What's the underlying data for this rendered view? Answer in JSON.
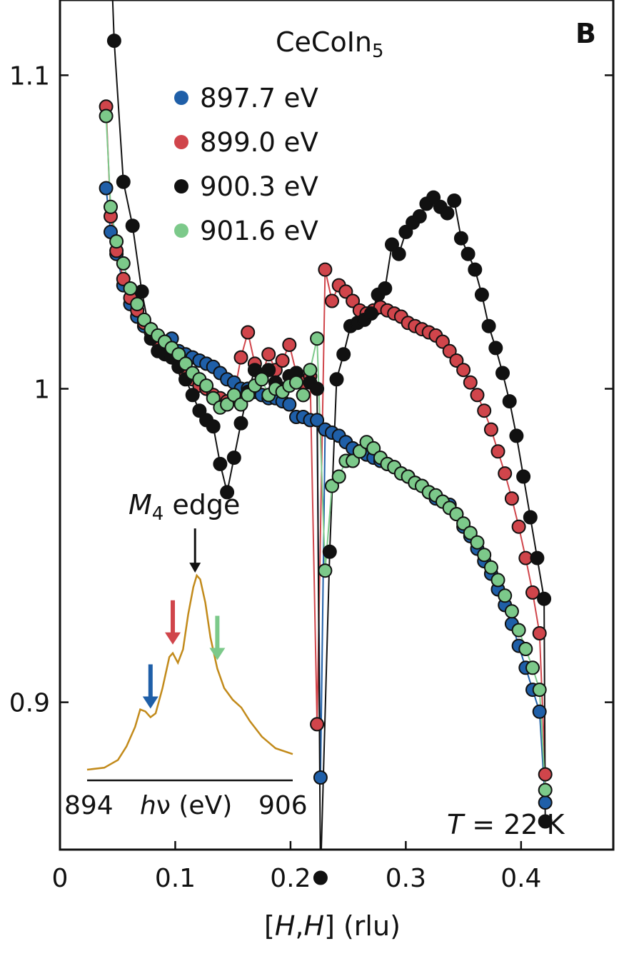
{
  "chart_data": {
    "type": "line",
    "panel_label": "B",
    "compound": {
      "base": "CeCoIn",
      "sub": "5"
    },
    "temperature": {
      "symbol": "T",
      "rest": " = 22 K"
    },
    "xlabel": {
      "open": "[",
      "h1": "H",
      "comma": ",",
      "h2": "H",
      "close": "] (rlu)"
    },
    "xlim": [
      0,
      0.48
    ],
    "ylim": [
      0.853,
      1.124
    ],
    "xticks": [
      "0",
      "0.1",
      "0.2",
      "0.3",
      "0.4"
    ],
    "xtick_values": [
      0,
      0.1,
      0.2,
      0.3,
      0.4
    ],
    "yticks": [
      "0.9",
      "1",
      "1.1"
    ],
    "ytick_values": [
      0.9,
      1.0,
      1.1
    ],
    "series": [
      {
        "name": "897.7 eV",
        "color": "#1f5fa8",
        "points": [
          [
            0.04,
            1.064
          ],
          [
            0.044,
            1.05
          ],
          [
            0.049,
            1.043
          ],
          [
            0.055,
            1.033
          ],
          [
            0.061,
            1.027
          ],
          [
            0.067,
            1.023
          ],
          [
            0.073,
            1.02
          ],
          [
            0.079,
            1.018
          ],
          [
            0.085,
            1.016
          ],
          [
            0.091,
            1.015
          ],
          [
            0.097,
            1.016
          ],
          [
            0.103,
            1.012
          ],
          [
            0.109,
            1.011
          ],
          [
            0.115,
            1.01
          ],
          [
            0.121,
            1.009
          ],
          [
            0.127,
            1.008
          ],
          [
            0.133,
            1.007
          ],
          [
            0.139,
            1.005
          ],
          [
            0.145,
            1.003
          ],
          [
            0.151,
            1.002
          ],
          [
            0.157,
            1.0
          ],
          [
            0.163,
            1.0
          ],
          [
            0.169,
            0.999
          ],
          [
            0.175,
            0.998
          ],
          [
            0.181,
            0.997
          ],
          [
            0.187,
            0.997
          ],
          [
            0.193,
            0.996
          ],
          [
            0.199,
            0.995
          ],
          [
            0.205,
            0.991
          ],
          [
            0.211,
            0.991
          ],
          [
            0.217,
            0.99
          ],
          [
            0.223,
            0.99
          ],
          [
            0.226,
            0.876
          ],
          [
            0.23,
            0.987
          ],
          [
            0.236,
            0.986
          ],
          [
            0.242,
            0.985
          ],
          [
            0.248,
            0.983
          ],
          [
            0.254,
            0.981
          ],
          [
            0.26,
            0.98
          ],
          [
            0.266,
            0.979
          ],
          [
            0.272,
            0.978
          ],
          [
            0.278,
            0.977
          ],
          [
            0.284,
            0.976
          ],
          [
            0.29,
            0.975
          ],
          [
            0.296,
            0.973
          ],
          [
            0.302,
            0.972
          ],
          [
            0.308,
            0.97
          ],
          [
            0.314,
            0.969
          ],
          [
            0.32,
            0.967
          ],
          [
            0.326,
            0.965
          ],
          [
            0.332,
            0.964
          ],
          [
            0.338,
            0.963
          ],
          [
            0.344,
            0.96
          ],
          [
            0.35,
            0.956
          ],
          [
            0.356,
            0.953
          ],
          [
            0.362,
            0.949
          ],
          [
            0.368,
            0.945
          ],
          [
            0.374,
            0.941
          ],
          [
            0.38,
            0.936
          ],
          [
            0.386,
            0.931
          ],
          [
            0.392,
            0.925
          ],
          [
            0.398,
            0.918
          ],
          [
            0.404,
            0.911
          ],
          [
            0.41,
            0.904
          ],
          [
            0.416,
            0.897
          ],
          [
            0.421,
            0.868
          ]
        ]
      },
      {
        "name": "899.0 eV",
        "color": "#d0454b",
        "points": [
          [
            0.04,
            1.09
          ],
          [
            0.044,
            1.055
          ],
          [
            0.049,
            1.044
          ],
          [
            0.055,
            1.035
          ],
          [
            0.061,
            1.029
          ],
          [
            0.067,
            1.025
          ],
          [
            0.073,
            1.021
          ],
          [
            0.079,
            1.018
          ],
          [
            0.085,
            1.015
          ],
          [
            0.091,
            1.012
          ],
          [
            0.097,
            1.01
          ],
          [
            0.103,
            1.007
          ],
          [
            0.109,
            1.005
          ],
          [
            0.115,
            1.003
          ],
          [
            0.121,
            1.001
          ],
          [
            0.127,
            1.0
          ],
          [
            0.133,
            0.998
          ],
          [
            0.139,
            0.997
          ],
          [
            0.145,
            0.996
          ],
          [
            0.151,
            0.998
          ],
          [
            0.157,
            1.01
          ],
          [
            0.163,
            1.018
          ],
          [
            0.169,
            1.008
          ],
          [
            0.175,
            1.004
          ],
          [
            0.181,
            1.011
          ],
          [
            0.187,
            1.006
          ],
          [
            0.193,
            1.009
          ],
          [
            0.199,
            1.014
          ],
          [
            0.205,
            1.005
          ],
          [
            0.211,
            1.002
          ],
          [
            0.217,
            1.004
          ],
          [
            0.223,
            0.893
          ],
          [
            0.23,
            1.038
          ],
          [
            0.236,
            1.028
          ],
          [
            0.242,
            1.033
          ],
          [
            0.248,
            1.031
          ],
          [
            0.254,
            1.028
          ],
          [
            0.26,
            1.025
          ],
          [
            0.266,
            1.024
          ],
          [
            0.272,
            1.025
          ],
          [
            0.278,
            1.026
          ],
          [
            0.284,
            1.025
          ],
          [
            0.29,
            1.024
          ],
          [
            0.296,
            1.023
          ],
          [
            0.302,
            1.021
          ],
          [
            0.308,
            1.02
          ],
          [
            0.314,
            1.019
          ],
          [
            0.32,
            1.018
          ],
          [
            0.326,
            1.017
          ],
          [
            0.332,
            1.015
          ],
          [
            0.338,
            1.012
          ],
          [
            0.344,
            1.009
          ],
          [
            0.35,
            1.006
          ],
          [
            0.356,
            1.002
          ],
          [
            0.362,
            0.998
          ],
          [
            0.368,
            0.993
          ],
          [
            0.374,
            0.987
          ],
          [
            0.38,
            0.98
          ],
          [
            0.386,
            0.973
          ],
          [
            0.392,
            0.965
          ],
          [
            0.398,
            0.956
          ],
          [
            0.404,
            0.946
          ],
          [
            0.41,
            0.935
          ],
          [
            0.416,
            0.922
          ],
          [
            0.421,
            0.877
          ]
        ]
      },
      {
        "name": "900.3 eV",
        "color": "#111111",
        "points": [
          [
            0.04,
            1.18
          ],
          [
            0.047,
            1.111
          ],
          [
            0.055,
            1.066
          ],
          [
            0.063,
            1.052
          ],
          [
            0.071,
            1.031
          ],
          [
            0.079,
            1.016
          ],
          [
            0.085,
            1.012
          ],
          [
            0.091,
            1.011
          ],
          [
            0.097,
            1.01
          ],
          [
            0.103,
            1.007
          ],
          [
            0.109,
            1.003
          ],
          [
            0.115,
            0.998
          ],
          [
            0.121,
            0.993
          ],
          [
            0.127,
            0.99
          ],
          [
            0.133,
            0.988
          ],
          [
            0.139,
            0.976
          ],
          [
            0.145,
            0.967
          ],
          [
            0.151,
            0.978
          ],
          [
            0.157,
            0.989
          ],
          [
            0.163,
            0.999
          ],
          [
            0.169,
            1.006
          ],
          [
            0.175,
            1.004
          ],
          [
            0.181,
            1.006
          ],
          [
            0.187,
            1.002
          ],
          [
            0.193,
            1.0
          ],
          [
            0.199,
            1.004
          ],
          [
            0.205,
            1.005
          ],
          [
            0.211,
            0.998
          ],
          [
            0.217,
            1.002
          ],
          [
            0.223,
            1.0
          ],
          [
            0.226,
            0.844
          ],
          [
            0.234,
            0.948
          ],
          [
            0.24,
            1.003
          ],
          [
            0.246,
            1.011
          ],
          [
            0.252,
            1.02
          ],
          [
            0.258,
            1.021
          ],
          [
            0.264,
            1.022
          ],
          [
            0.27,
            1.024
          ],
          [
            0.276,
            1.03
          ],
          [
            0.282,
            1.032
          ],
          [
            0.288,
            1.046
          ],
          [
            0.294,
            1.043
          ],
          [
            0.3,
            1.05
          ],
          [
            0.306,
            1.053
          ],
          [
            0.312,
            1.055
          ],
          [
            0.318,
            1.059
          ],
          [
            0.324,
            1.061
          ],
          [
            0.33,
            1.058
          ],
          [
            0.336,
            1.056
          ],
          [
            0.342,
            1.06
          ],
          [
            0.348,
            1.048
          ],
          [
            0.354,
            1.043
          ],
          [
            0.36,
            1.038
          ],
          [
            0.366,
            1.03
          ],
          [
            0.372,
            1.02
          ],
          [
            0.378,
            1.013
          ],
          [
            0.384,
            1.005
          ],
          [
            0.39,
            0.996
          ],
          [
            0.396,
            0.985
          ],
          [
            0.402,
            0.972
          ],
          [
            0.408,
            0.959
          ],
          [
            0.414,
            0.946
          ],
          [
            0.42,
            0.933
          ],
          [
            0.421,
            0.862
          ]
        ]
      },
      {
        "name": "901.6 eV",
        "color": "#7cc98a",
        "points": [
          [
            0.04,
            1.087
          ],
          [
            0.044,
            1.058
          ],
          [
            0.049,
            1.047
          ],
          [
            0.055,
            1.04
          ],
          [
            0.061,
            1.032
          ],
          [
            0.067,
            1.027
          ],
          [
            0.073,
            1.022
          ],
          [
            0.079,
            1.019
          ],
          [
            0.085,
            1.017
          ],
          [
            0.091,
            1.015
          ],
          [
            0.097,
            1.013
          ],
          [
            0.103,
            1.011
          ],
          [
            0.109,
            1.008
          ],
          [
            0.115,
            1.005
          ],
          [
            0.121,
            1.003
          ],
          [
            0.127,
            1.001
          ],
          [
            0.133,
            0.997
          ],
          [
            0.139,
            0.994
          ],
          [
            0.145,
            0.995
          ],
          [
            0.151,
            0.998
          ],
          [
            0.157,
            0.995
          ],
          [
            0.163,
            0.998
          ],
          [
            0.169,
            1.001
          ],
          [
            0.175,
            1.003
          ],
          [
            0.181,
            0.998
          ],
          [
            0.187,
            1.0
          ],
          [
            0.193,
            0.999
          ],
          [
            0.199,
            1.001
          ],
          [
            0.205,
            1.002
          ],
          [
            0.211,
            0.998
          ],
          [
            0.217,
            1.006
          ],
          [
            0.223,
            1.016
          ],
          [
            0.23,
            0.942
          ],
          [
            0.236,
            0.969
          ],
          [
            0.242,
            0.972
          ],
          [
            0.248,
            0.977
          ],
          [
            0.254,
            0.977
          ],
          [
            0.26,
            0.98
          ],
          [
            0.266,
            0.983
          ],
          [
            0.272,
            0.981
          ],
          [
            0.278,
            0.978
          ],
          [
            0.284,
            0.976
          ],
          [
            0.29,
            0.975
          ],
          [
            0.296,
            0.973
          ],
          [
            0.302,
            0.972
          ],
          [
            0.308,
            0.97
          ],
          [
            0.314,
            0.969
          ],
          [
            0.32,
            0.967
          ],
          [
            0.326,
            0.966
          ],
          [
            0.332,
            0.964
          ],
          [
            0.338,
            0.962
          ],
          [
            0.344,
            0.96
          ],
          [
            0.35,
            0.957
          ],
          [
            0.356,
            0.954
          ],
          [
            0.362,
            0.951
          ],
          [
            0.368,
            0.947
          ],
          [
            0.374,
            0.943
          ],
          [
            0.38,
            0.939
          ],
          [
            0.386,
            0.934
          ],
          [
            0.392,
            0.929
          ],
          [
            0.398,
            0.923
          ],
          [
            0.404,
            0.917
          ],
          [
            0.41,
            0.911
          ],
          [
            0.416,
            0.904
          ],
          [
            0.421,
            0.872
          ]
        ]
      }
    ],
    "inset": {
      "edge_label": {
        "symbol": "M",
        "sub": "4",
        "rest": " edge"
      },
      "x_start_label": "894",
      "x_end_label": "906",
      "x_axis_label": {
        "symbol": "h",
        "nu": "ν",
        "rest": " (eV)"
      },
      "curve_color": "#c28a1a",
      "xlim": [
        894,
        906
      ],
      "spectrum": [
        [
          894.0,
          0.0
        ],
        [
          895.0,
          0.01
        ],
        [
          895.8,
          0.05
        ],
        [
          896.3,
          0.12
        ],
        [
          896.8,
          0.22
        ],
        [
          897.1,
          0.31
        ],
        [
          897.4,
          0.3
        ],
        [
          897.7,
          0.27
        ],
        [
          898.0,
          0.29
        ],
        [
          898.4,
          0.42
        ],
        [
          898.8,
          0.58
        ],
        [
          899.0,
          0.6
        ],
        [
          899.3,
          0.55
        ],
        [
          899.6,
          0.62
        ],
        [
          899.9,
          0.8
        ],
        [
          900.2,
          0.94
        ],
        [
          900.4,
          1.0
        ],
        [
          900.6,
          0.98
        ],
        [
          900.9,
          0.86
        ],
        [
          901.2,
          0.68
        ],
        [
          901.6,
          0.52
        ],
        [
          902.0,
          0.42
        ],
        [
          902.5,
          0.36
        ],
        [
          903.0,
          0.32
        ],
        [
          903.5,
          0.25
        ],
        [
          904.2,
          0.17
        ],
        [
          905.0,
          0.11
        ],
        [
          906.0,
          0.08
        ]
      ],
      "arrows": [
        {
          "energy": 897.7,
          "color": "#1f5fa8"
        },
        {
          "energy": 899.0,
          "color": "#d0454b"
        },
        {
          "energy": 900.3,
          "color": "#111111"
        },
        {
          "energy": 901.6,
          "color": "#7cc98a"
        }
      ]
    }
  }
}
